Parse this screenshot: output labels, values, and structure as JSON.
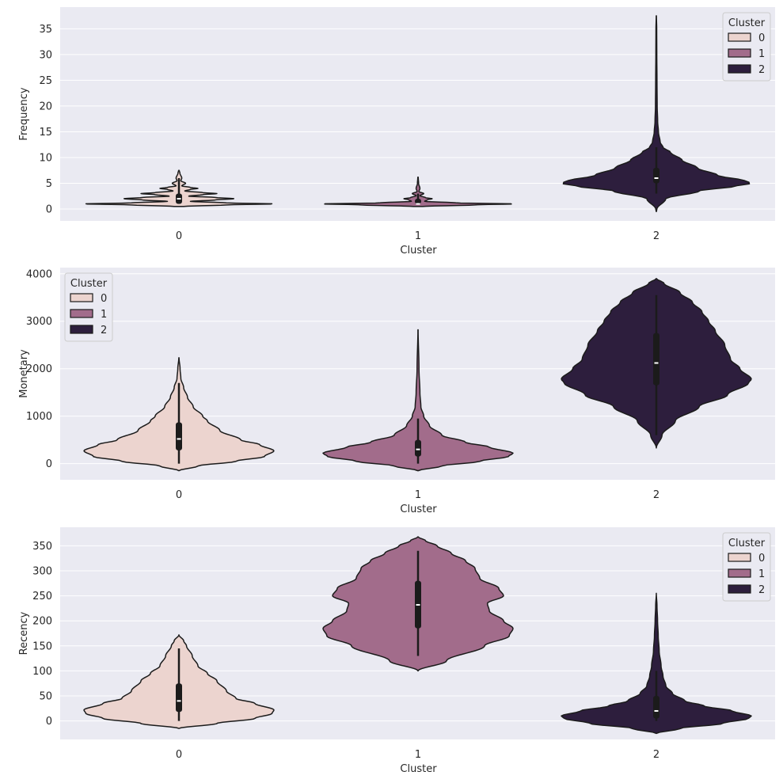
{
  "palette": {
    "background": "#eaeaf2",
    "grid": "#ffffff",
    "outline": "#1b1b1b",
    "cluster_0": "#ecd4cf",
    "cluster_1": "#a26c8b",
    "cluster_2": "#2d1e3d"
  },
  "chart_data": [
    {
      "type": "violin",
      "xlabel": "Cluster",
      "ylabel": "Frequency",
      "categories": [
        "0",
        "1",
        "2"
      ],
      "yticks": [
        0,
        5,
        10,
        15,
        20,
        25,
        30,
        35
      ],
      "ylim": [
        -2.3,
        39.2
      ],
      "legend": {
        "title": "Cluster",
        "labels": [
          "0",
          "1",
          "2"
        ],
        "placement": "upper right"
      },
      "grid": true,
      "violins": [
        {
          "category": "0",
          "ymin": 0.5,
          "ymax": 7.5,
          "median": 2,
          "q1": 1,
          "q3": 3,
          "whisker_low": 1,
          "whisker_high": 6,
          "profile": [
            [
              0.5,
              0.05
            ],
            [
              0.8,
              0.5
            ],
            [
              1,
              1.0
            ],
            [
              1.2,
              0.5
            ],
            [
              1.5,
              0.12
            ],
            [
              1.75,
              0.38
            ],
            [
              2,
              0.58
            ],
            [
              2.25,
              0.38
            ],
            [
              2.5,
              0.1
            ],
            [
              2.8,
              0.25
            ],
            [
              3,
              0.4
            ],
            [
              3.2,
              0.25
            ],
            [
              3.5,
              0.06
            ],
            [
              3.8,
              0.12
            ],
            [
              4,
              0.2
            ],
            [
              4.2,
              0.12
            ],
            [
              4.5,
              0.03
            ],
            [
              5,
              0.07
            ],
            [
              5.5,
              0.02
            ],
            [
              6,
              0.03
            ],
            [
              7,
              0.01
            ],
            [
              7.5,
              0.003
            ]
          ]
        },
        {
          "category": "1",
          "ymin": 0.5,
          "ymax": 6.2,
          "median": 1,
          "q1": 1,
          "q3": 2,
          "whisker_low": 1,
          "whisker_high": 3,
          "profile": [
            [
              0.5,
              0.05
            ],
            [
              0.8,
              0.6
            ],
            [
              1,
              1.0
            ],
            [
              1.2,
              0.4
            ],
            [
              1.5,
              0.07
            ],
            [
              1.8,
              0.1
            ],
            [
              2,
              0.15
            ],
            [
              2.2,
              0.08
            ],
            [
              2.6,
              0.02
            ],
            [
              3,
              0.06
            ],
            [
              3.4,
              0.01
            ],
            [
              4,
              0.02
            ],
            [
              5,
              0.006
            ],
            [
              6.2,
              0.002
            ]
          ]
        },
        {
          "category": "2",
          "ymin": -0.5,
          "ymax": 37.5,
          "median": 6,
          "q1": 5,
          "q3": 8,
          "whisker_low": 3,
          "whisker_high": 12,
          "profile": [
            [
              -0.5,
              0.0
            ],
            [
              0,
              0.006
            ],
            [
              2,
              0.1
            ],
            [
              3.5,
              0.45
            ],
            [
              4.5,
              0.85
            ],
            [
              5,
              1.0
            ],
            [
              5.5,
              0.93
            ],
            [
              6.5,
              0.65
            ],
            [
              8,
              0.43
            ],
            [
              9.5,
              0.27
            ],
            [
              11,
              0.15
            ],
            [
              12,
              0.07
            ],
            [
              13,
              0.04
            ],
            [
              15,
              0.022
            ],
            [
              17,
              0.014
            ],
            [
              20,
              0.009
            ],
            [
              25,
              0.007
            ],
            [
              30,
              0.005
            ],
            [
              35,
              0.004
            ],
            [
              37.5,
              0.001
            ]
          ]
        }
      ]
    },
    {
      "type": "violin",
      "xlabel": "Cluster",
      "ylabel": "Monetary",
      "categories": [
        "0",
        "1",
        "2"
      ],
      "yticks": [
        0,
        1000,
        2000,
        3000,
        4000
      ],
      "ylim": [
        -340,
        4130
      ],
      "legend": {
        "title": "Cluster",
        "labels": [
          "0",
          "1",
          "2"
        ],
        "placement": "upper left"
      },
      "grid": true,
      "violins": [
        {
          "category": "0",
          "ymin": -150,
          "ymax": 2230,
          "median": 520,
          "q1": 280,
          "q3": 870,
          "whisker_low": 0,
          "whisker_high": 1700,
          "profile": [
            [
              -150,
              0.0
            ],
            [
              -50,
              0.2
            ],
            [
              50,
              0.6
            ],
            [
              150,
              0.9
            ],
            [
              270,
              1.0
            ],
            [
              400,
              0.85
            ],
            [
              500,
              0.65
            ],
            [
              700,
              0.43
            ],
            [
              900,
              0.3
            ],
            [
              1000,
              0.25
            ],
            [
              1200,
              0.15
            ],
            [
              1400,
              0.09
            ],
            [
              1600,
              0.05
            ],
            [
              1800,
              0.02
            ],
            [
              2000,
              0.012
            ],
            [
              2230,
              0.001
            ]
          ]
        },
        {
          "category": "1",
          "ymin": -150,
          "ymax": 2820,
          "median": 300,
          "q1": 150,
          "q3": 500,
          "whisker_low": 0,
          "whisker_high": 950,
          "profile": [
            [
              -150,
              0.0
            ],
            [
              -50,
              0.25
            ],
            [
              50,
              0.65
            ],
            [
              150,
              0.95
            ],
            [
              220,
              1.0
            ],
            [
              350,
              0.75
            ],
            [
              450,
              0.5
            ],
            [
              600,
              0.25
            ],
            [
              800,
              0.12
            ],
            [
              1000,
              0.06
            ],
            [
              1200,
              0.03
            ],
            [
              1500,
              0.02
            ],
            [
              2000,
              0.01
            ],
            [
              2820,
              0.001
            ]
          ]
        },
        {
          "category": "2",
          "ymin": 330,
          "ymax": 3900,
          "median": 2120,
          "q1": 1650,
          "q3": 2750,
          "whisker_low": 600,
          "whisker_high": 3550,
          "profile": [
            [
              330,
              0.0
            ],
            [
              600,
              0.06
            ],
            [
              900,
              0.2
            ],
            [
              1200,
              0.45
            ],
            [
              1450,
              0.75
            ],
            [
              1700,
              0.97
            ],
            [
              1780,
              1.0
            ],
            [
              2000,
              0.88
            ],
            [
              2200,
              0.78
            ],
            [
              2500,
              0.72
            ],
            [
              2800,
              0.62
            ],
            [
              3000,
              0.55
            ],
            [
              3200,
              0.48
            ],
            [
              3400,
              0.38
            ],
            [
              3600,
              0.25
            ],
            [
              3800,
              0.08
            ],
            [
              3900,
              0.0
            ]
          ]
        }
      ]
    },
    {
      "type": "violin",
      "xlabel": "Cluster",
      "ylabel": "Recency",
      "categories": [
        "0",
        "1",
        "2"
      ],
      "yticks": [
        0,
        50,
        100,
        150,
        200,
        250,
        300,
        350
      ],
      "ylim": [
        -37,
        387
      ],
      "legend": {
        "title": "Cluster",
        "labels": [
          "0",
          "1",
          "2"
        ],
        "placement": "upper right"
      },
      "grid": true,
      "violins": [
        {
          "category": "0",
          "ymin": -15,
          "ymax": 172,
          "median": 40,
          "q1": 18,
          "q3": 75,
          "whisker_low": 0,
          "whisker_high": 145,
          "profile": [
            [
              -15,
              0.0
            ],
            [
              -5,
              0.4
            ],
            [
              5,
              0.8
            ],
            [
              15,
              0.98
            ],
            [
              22,
              1.0
            ],
            [
              35,
              0.8
            ],
            [
              45,
              0.6
            ],
            [
              60,
              0.5
            ],
            [
              80,
              0.4
            ],
            [
              95,
              0.3
            ],
            [
              110,
              0.2
            ],
            [
              130,
              0.14
            ],
            [
              150,
              0.08
            ],
            [
              160,
              0.05
            ],
            [
              172,
              0.0
            ]
          ]
        },
        {
          "category": "1",
          "ymin": 100,
          "ymax": 368,
          "median": 232,
          "q1": 185,
          "q3": 280,
          "whisker_low": 130,
          "whisker_high": 340,
          "profile": [
            [
              100,
              0.0
            ],
            [
              120,
              0.3
            ],
            [
              150,
              0.7
            ],
            [
              170,
              0.96
            ],
            [
              185,
              1.0
            ],
            [
              200,
              0.9
            ],
            [
              220,
              0.75
            ],
            [
              235,
              0.73
            ],
            [
              250,
              0.9
            ],
            [
              265,
              0.85
            ],
            [
              285,
              0.65
            ],
            [
              305,
              0.6
            ],
            [
              320,
              0.5
            ],
            [
              335,
              0.35
            ],
            [
              350,
              0.2
            ],
            [
              360,
              0.08
            ],
            [
              368,
              0.0
            ]
          ]
        },
        {
          "category": "2",
          "ymin": -25,
          "ymax": 255,
          "median": 20,
          "q1": 5,
          "q3": 50,
          "whisker_low": 0,
          "whisker_high": 100,
          "profile": [
            [
              -25,
              0.0
            ],
            [
              -15,
              0.25
            ],
            [
              -5,
              0.7
            ],
            [
              5,
              0.97
            ],
            [
              10,
              1.0
            ],
            [
              20,
              0.8
            ],
            [
              30,
              0.5
            ],
            [
              40,
              0.3
            ],
            [
              55,
              0.17
            ],
            [
              70,
              0.1
            ],
            [
              90,
              0.07
            ],
            [
              110,
              0.05
            ],
            [
              140,
              0.03
            ],
            [
              170,
              0.02
            ],
            [
              200,
              0.013
            ],
            [
              230,
              0.007
            ],
            [
              255,
              0.0
            ]
          ]
        }
      ]
    }
  ]
}
